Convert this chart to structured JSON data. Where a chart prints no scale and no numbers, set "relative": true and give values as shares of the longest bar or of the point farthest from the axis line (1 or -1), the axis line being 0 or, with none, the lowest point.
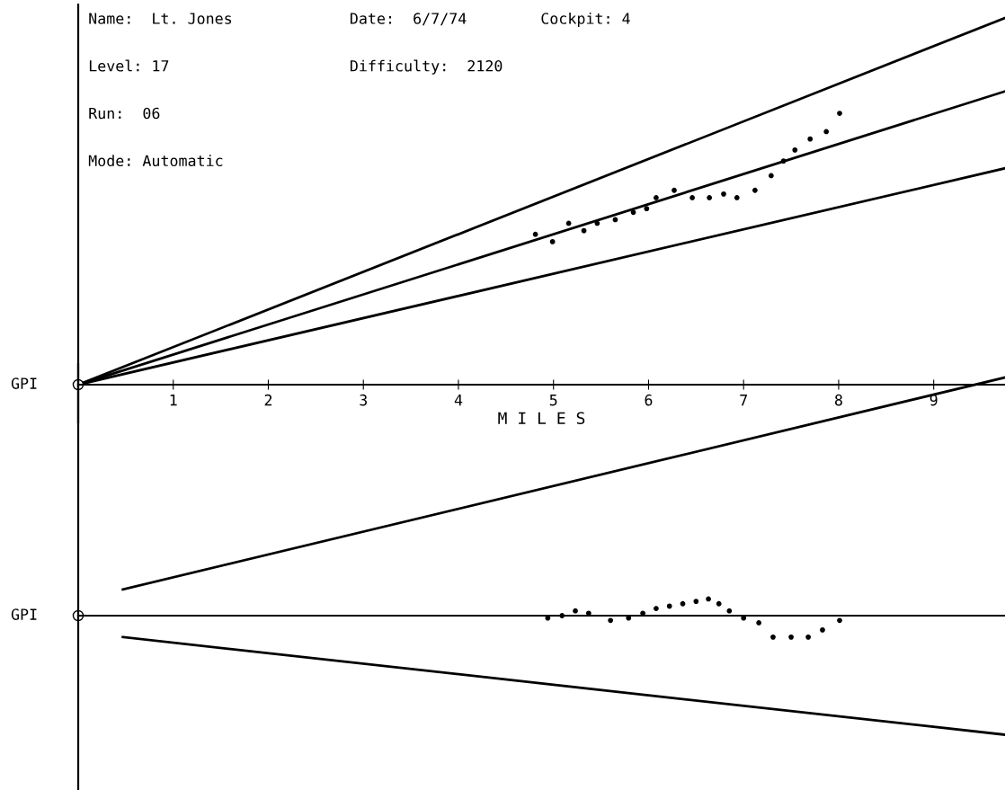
{
  "chart_data": [
    {
      "type": "line",
      "relative": true,
      "xlabel": "M I L E S",
      "xlim": [
        0,
        9.75
      ],
      "xticks": [
        1,
        2,
        3,
        4,
        5,
        6,
        7,
        8,
        9
      ],
      "grid": false,
      "annotations": [
        "Name:  Lt. Jones",
        "Date:  6/7/74",
        "Cockpit: 4",
        "Level: 17",
        "Difficulty:  2120",
        "Run:  06",
        "Mode: Automatic",
        "GPI"
      ],
      "series": [
        {
          "color": "#000000",
          "x": [
            0,
            9.75
          ],
          "values": [
            0,
            1.0
          ]
        },
        {
          "color": "#000000",
          "x": [
            0,
            9.75
          ],
          "values": [
            0,
            0.8
          ]
        },
        {
          "color": "#000000",
          "x": [
            0,
            9.75
          ],
          "values": [
            0,
            0.59
          ]
        },
        {
          "type": "scatter",
          "color": "#000000",
          "marker": "circle",
          "x": [
            4.81,
            4.99,
            5.16,
            5.32,
            5.46,
            5.65,
            5.84,
            5.98,
            6.08,
            6.27,
            6.46,
            6.64,
            6.79,
            6.93,
            7.12,
            7.29,
            7.42,
            7.54,
            7.7,
            7.87,
            8.01
          ],
          "values": [
            0.41,
            0.39,
            0.44,
            0.42,
            0.44,
            0.45,
            0.47,
            0.48,
            0.51,
            0.53,
            0.51,
            0.51,
            0.52,
            0.51,
            0.53,
            0.57,
            0.61,
            0.64,
            0.67,
            0.69,
            0.74
          ]
        }
      ]
    },
    {
      "type": "line",
      "relative": true,
      "xlim": [
        0,
        9.75
      ],
      "grid": false,
      "annotations": [
        "GPI"
      ],
      "series": [
        {
          "color": "#000000",
          "x": [
            0.47,
            9.75
          ],
          "values": [
            0.11,
            1.0
          ]
        },
        {
          "color": "#000000",
          "x": [
            0.47,
            9.75
          ],
          "values": [
            -0.09,
            -0.5
          ]
        },
        {
          "type": "scatter",
          "color": "#000000",
          "marker": "circle",
          "x": [
            4.94,
            5.09,
            5.23,
            5.37,
            5.6,
            5.79,
            5.94,
            6.08,
            6.22,
            6.36,
            6.5,
            6.63,
            6.74,
            6.85,
            7.0,
            7.16,
            7.31,
            7.5,
            7.68,
            7.83,
            8.01
          ],
          "values": [
            -0.01,
            0.0,
            0.02,
            0.01,
            -0.02,
            -0.01,
            0.01,
            0.03,
            0.04,
            0.05,
            0.06,
            0.07,
            0.05,
            0.02,
            -0.01,
            -0.03,
            -0.09,
            -0.09,
            -0.09,
            -0.06,
            -0.02
          ]
        }
      ]
    }
  ]
}
